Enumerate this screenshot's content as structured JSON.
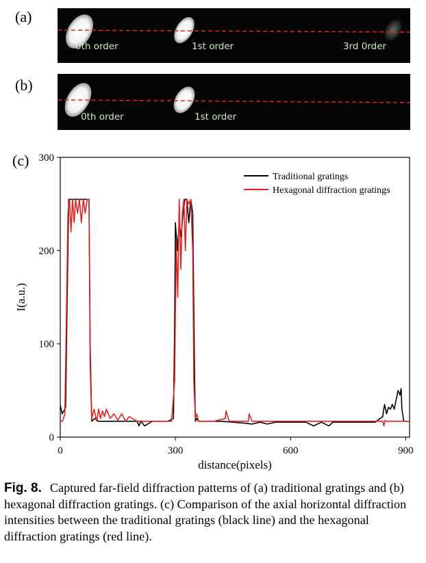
{
  "panels": {
    "a": {
      "label": "(a)",
      "orders": [
        "0th order",
        "1st order",
        "3rd 0rder"
      ]
    },
    "b": {
      "label": "(b)",
      "orders": [
        "0th order",
        "1st order"
      ]
    },
    "c": {
      "label": "(c)"
    }
  },
  "chart_data": {
    "type": "line",
    "xlabel": "distance(pixels)",
    "ylabel": "I(a.u.)",
    "xlim": [
      0,
      910
    ],
    "ylim": [
      0,
      300
    ],
    "xticks": [
      0,
      300,
      600,
      900
    ],
    "yticks": [
      0,
      100,
      200,
      300
    ],
    "legend_position": "top-right",
    "series": [
      {
        "name": "Traditional  gratings",
        "color": "#000000",
        "x": [
          0,
          5,
          12,
          14,
          18,
          22,
          30,
          45,
          60,
          70,
          75,
          78,
          82,
          90,
          100,
          120,
          150,
          180,
          200,
          205,
          210,
          220,
          240,
          260,
          280,
          295,
          298,
          300,
          305,
          310,
          315,
          320,
          325,
          330,
          335,
          340,
          345,
          350,
          352,
          355,
          360,
          380,
          420,
          450,
          480,
          500,
          520,
          540,
          560,
          600,
          640,
          660,
          680,
          700,
          710,
          740,
          780,
          820,
          840,
          842,
          845,
          850,
          855,
          860,
          865,
          870,
          875,
          880,
          885,
          888,
          890,
          895,
          910
        ],
        "y": [
          34,
          25,
          30,
          32,
          150,
          255,
          255,
          255,
          255,
          255,
          255,
          80,
          17,
          20,
          17,
          17,
          17,
          17,
          17,
          12,
          17,
          12,
          17,
          17,
          17,
          20,
          120,
          230,
          200,
          230,
          215,
          240,
          255,
          255,
          230,
          255,
          240,
          60,
          17,
          20,
          17,
          17,
          17,
          16,
          15,
          14,
          16,
          14,
          16,
          16,
          16,
          12,
          16,
          12,
          16,
          16,
          16,
          16,
          22,
          28,
          35,
          25,
          32,
          30,
          35,
          30,
          40,
          50,
          45,
          52,
          30,
          17,
          17
        ]
      },
      {
        "name": "Hexagonal diffraction gratings",
        "color": "#e8211d",
        "x": [
          0,
          6,
          12,
          16,
          20,
          24,
          28,
          32,
          36,
          40,
          45,
          50,
          55,
          60,
          65,
          70,
          75,
          78,
          82,
          88,
          95,
          100,
          105,
          110,
          115,
          120,
          130,
          140,
          150,
          160,
          170,
          180,
          200,
          250,
          290,
          298,
          302,
          306,
          310,
          314,
          318,
          322,
          326,
          330,
          335,
          340,
          345,
          348,
          352,
          356,
          360,
          370,
          400,
          430,
          432,
          440,
          450,
          480,
          490,
          492,
          500,
          550,
          600,
          650,
          700,
          750,
          800,
          840,
          843,
          846,
          850,
          860,
          880,
          910
        ],
        "y": [
          17,
          17,
          25,
          130,
          240,
          255,
          220,
          255,
          230,
          255,
          240,
          255,
          230,
          255,
          240,
          255,
          255,
          100,
          20,
          30,
          17,
          30,
          20,
          28,
          22,
          30,
          20,
          25,
          18,
          25,
          17,
          22,
          17,
          17,
          17,
          60,
          210,
          150,
          255,
          180,
          240,
          255,
          200,
          255,
          250,
          255,
          200,
          60,
          20,
          25,
          17,
          17,
          17,
          20,
          28,
          17,
          17,
          17,
          17,
          25,
          17,
          17,
          17,
          17,
          17,
          17,
          17,
          17,
          12,
          18,
          17,
          17,
          17,
          17
        ]
      }
    ]
  },
  "caption": {
    "fig": "Fig. 8.",
    "text": "Captured far-field diffraction patterns of (a) traditional gratings and (b) hexagonal diffraction gratings. (c) Comparison of the axial horizontal diffraction intensities between the traditional gratings (black line) and the hexagonal diffraction gratings (red line)."
  }
}
